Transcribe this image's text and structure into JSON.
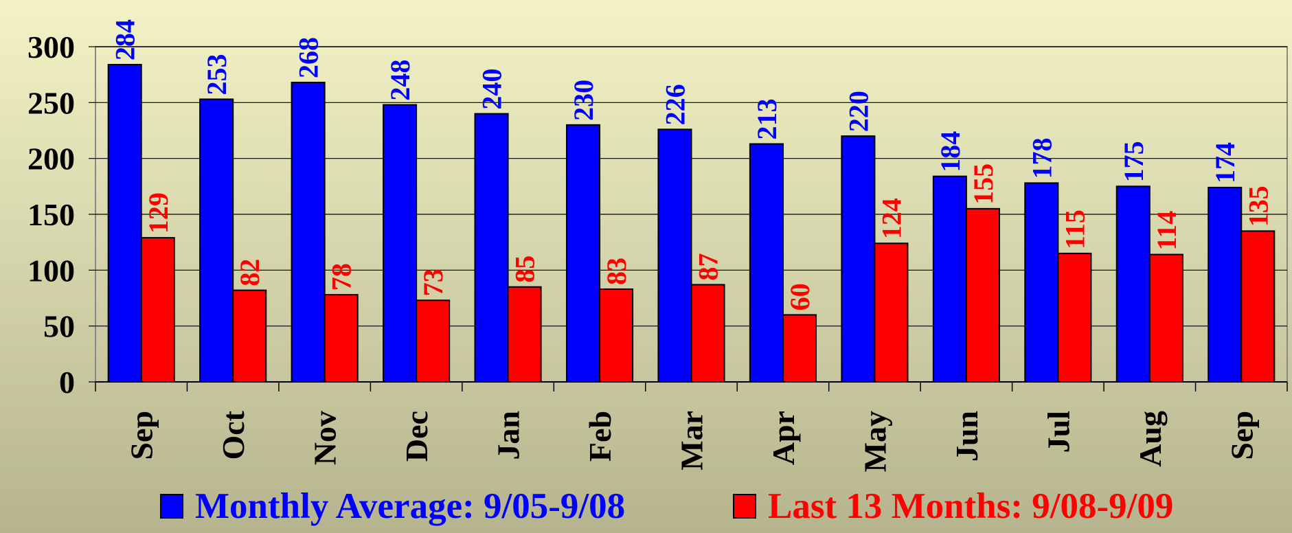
{
  "chart_data": {
    "type": "bar",
    "categories": [
      "Sep",
      "Oct",
      "Nov",
      "Dec",
      "Jan",
      "Feb",
      "Mar",
      "Apr",
      "May",
      "Jun",
      "Jul",
      "Aug",
      "Sep"
    ],
    "series": [
      {
        "name": "Monthly Average: 9/05-9/08",
        "color": "#0000ff",
        "values": [
          284,
          253,
          268,
          248,
          240,
          230,
          226,
          213,
          220,
          184,
          178,
          175,
          174
        ]
      },
      {
        "name": "Last 13 Months: 9/08-9/09",
        "color": "#ff0000",
        "values": [
          129,
          82,
          78,
          73,
          85,
          83,
          87,
          60,
          124,
          155,
          115,
          114,
          135
        ]
      }
    ],
    "ylim": [
      0,
      300
    ],
    "yticks": [
      0,
      50,
      100,
      150,
      200,
      250,
      300
    ],
    "grid": true,
    "legend": "bottom"
  }
}
